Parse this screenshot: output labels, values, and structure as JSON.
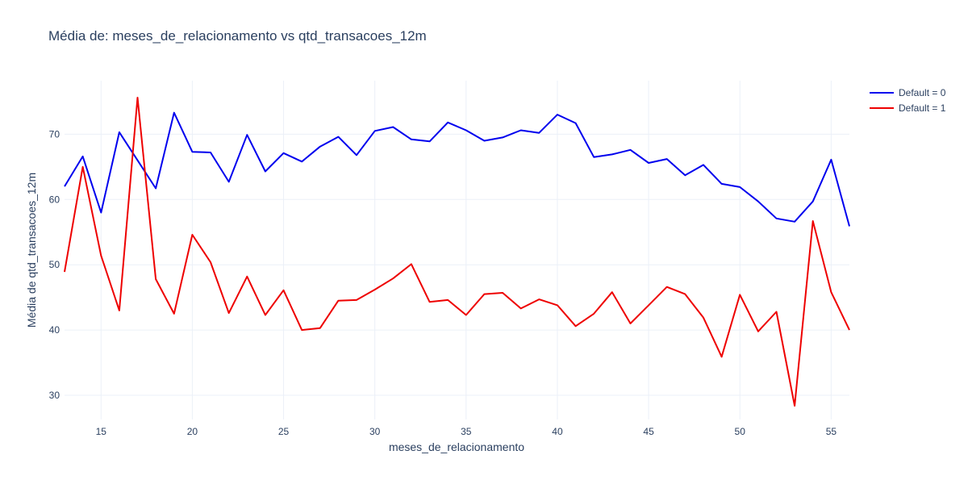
{
  "chart_data": {
    "type": "line",
    "title": "Média de: meses_de_relacionamento vs qtd_transacoes_12m",
    "xlabel": "meses_de_relacionamento",
    "ylabel": "Média de qtd_transacoes_12m",
    "xlim": [
      13,
      56
    ],
    "ylim": [
      26.3,
      78.2
    ],
    "x_ticks": [
      15,
      20,
      25,
      30,
      35,
      40,
      45,
      50,
      55
    ],
    "y_ticks": [
      30,
      40,
      50,
      60,
      70
    ],
    "grid": true,
    "legend_position": "top-right",
    "x": [
      13,
      14,
      15,
      16,
      17,
      18,
      19,
      20,
      21,
      22,
      23,
      24,
      25,
      26,
      27,
      28,
      29,
      30,
      31,
      32,
      33,
      34,
      35,
      36,
      37,
      38,
      39,
      40,
      41,
      42,
      43,
      44,
      45,
      46,
      47,
      48,
      49,
      50,
      51,
      52,
      53,
      54,
      55,
      56
    ],
    "series": [
      {
        "name": "Default = 0",
        "color": "#0000ee",
        "values": [
          62.0,
          66.6,
          58.0,
          70.3,
          66.0,
          61.7,
          73.3,
          67.3,
          67.2,
          62.7,
          69.9,
          64.3,
          67.1,
          65.8,
          68.1,
          69.6,
          66.8,
          70.5,
          71.1,
          69.2,
          68.9,
          71.8,
          70.6,
          69.0,
          69.5,
          70.6,
          70.2,
          73.0,
          71.7,
          66.5,
          66.9,
          67.6,
          65.6,
          66.2,
          63.7,
          65.3,
          62.4,
          61.9,
          59.7,
          57.1,
          56.6,
          59.7,
          66.1,
          55.9
        ]
      },
      {
        "name": "Default = 1",
        "color": "#ee0000",
        "values": [
          48.9,
          65.0,
          51.4,
          43.0,
          75.6,
          47.8,
          42.5,
          54.6,
          50.4,
          42.6,
          48.2,
          42.3,
          46.1,
          40.0,
          40.3,
          44.5,
          44.6,
          46.2,
          47.9,
          50.1,
          44.3,
          44.6,
          42.3,
          45.5,
          45.7,
          43.3,
          44.7,
          43.8,
          40.6,
          42.5,
          45.8,
          41.0,
          43.8,
          46.6,
          45.5,
          41.9,
          35.9,
          45.4,
          39.8,
          42.8,
          28.4,
          56.7,
          45.8,
          40.0
        ]
      }
    ]
  }
}
